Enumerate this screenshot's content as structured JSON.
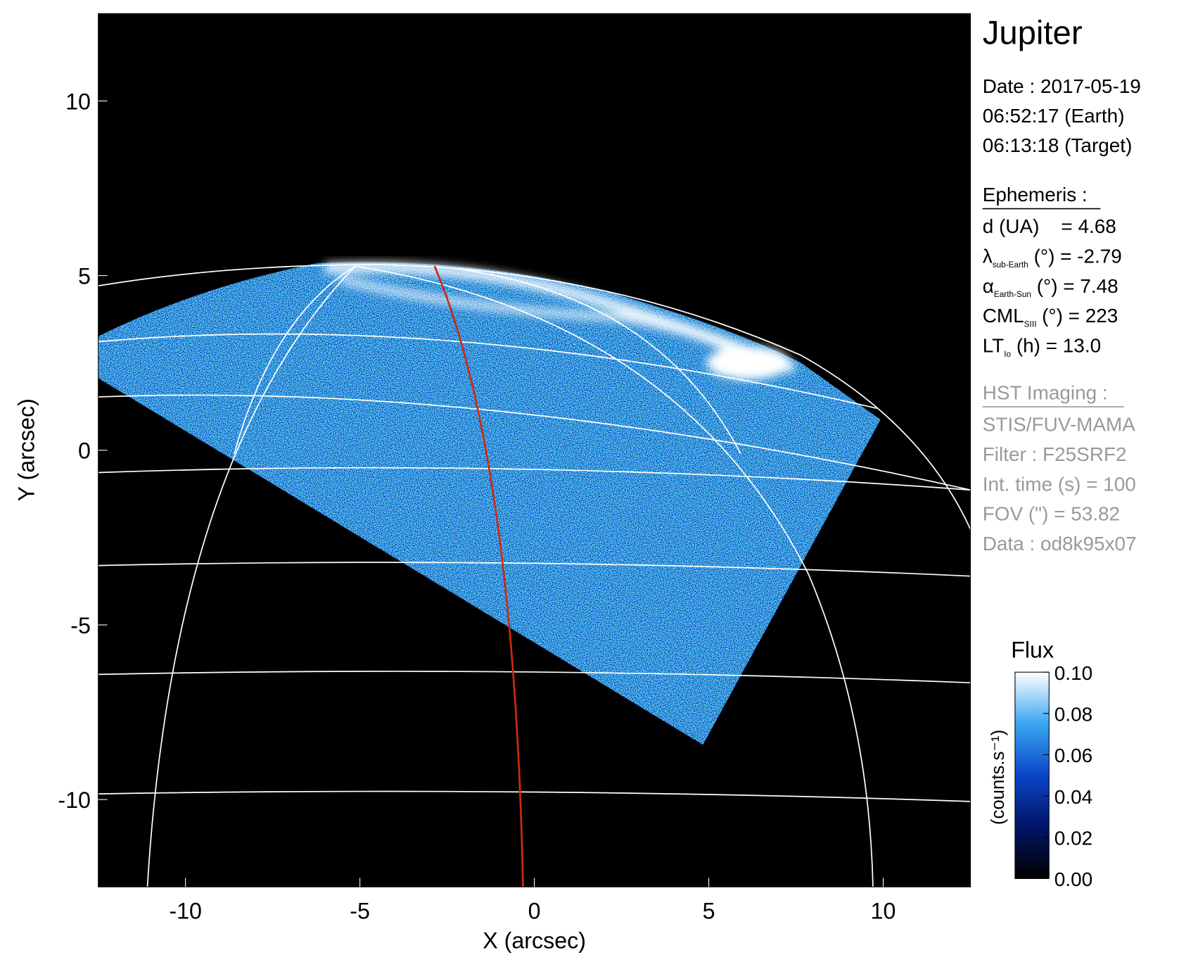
{
  "chart_data": {
    "type": "image",
    "xlabel": "X (arcsec)",
    "ylabel": "Y (arcsec)",
    "xlim": [
      -12.5,
      12.5
    ],
    "ylim": [
      -12.5,
      12.5
    ],
    "xticks": [
      -10,
      -5,
      0,
      5,
      10
    ],
    "yticks": [
      -10,
      -5,
      0,
      5,
      10
    ],
    "colorbar": {
      "title": "Flux",
      "label": "(counts.s⁻¹)",
      "lim": [
        0,
        0.1
      ],
      "ticks": [
        {
          "value": 0,
          "label": "0.00"
        },
        {
          "value": 0.02,
          "label": "0.02"
        },
        {
          "value": 0.04,
          "label": "0.04"
        },
        {
          "value": 0.06,
          "label": "0.06"
        },
        {
          "value": 0.08,
          "label": "0.08"
        },
        {
          "value": 0.1,
          "label": "0.10"
        }
      ],
      "colors": [
        "#000000",
        "#001566",
        "#0a45c8",
        "#3aa6f2",
        "#ffffff"
      ]
    }
  },
  "info": {
    "title": "Jupiter",
    "date": [
      "Date : 2017-05-19",
      "06:52:17 (Earth)",
      "06:13:18 (Target)"
    ],
    "ephemeris": {
      "header": "Ephemeris :",
      "items": [
        {
          "main": "d (UA)    = 4.68"
        },
        {
          "main": "λ",
          "sub": "sub-Earth",
          "rest": " (°) = -2.79"
        },
        {
          "main": "α",
          "sub": "Earth-Sun",
          "rest": " (°) = 7.48"
        },
        {
          "main": "CML",
          "sub": "SIII",
          "rest": " (°) = 223"
        },
        {
          "main": "LT",
          "sub": "Io",
          "rest": " (h) = 13.0"
        }
      ]
    },
    "imaging": {
      "header": "HST Imaging :",
      "items": [
        "STIS/FUV-MAMA",
        "Filter : F25SRF2",
        "Int. time (s) = 100",
        "FOV (\") = 53.82",
        "Data : od8k95x07"
      ]
    }
  }
}
